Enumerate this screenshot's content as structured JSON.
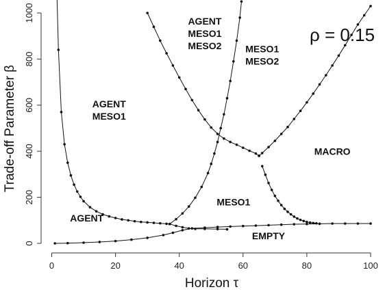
{
  "chart_data": {
    "type": "line",
    "title": "",
    "annotation": "ρ = 0.15",
    "xlabel": "Horizon  τ",
    "ylabel": "Trade-off Parameter  β",
    "xlim": [
      0,
      100
    ],
    "ylim": [
      0,
      1000
    ],
    "xticks": [
      0,
      20,
      40,
      60,
      80,
      100
    ],
    "yticks": [
      0,
      200,
      400,
      600,
      800,
      1000
    ],
    "region_labels": [
      {
        "lines": [
          "AGENT",
          "MESO1",
          "MESO2"
        ],
        "x": 48,
        "y": 950
      },
      {
        "lines": [
          "MESO1",
          "MESO2"
        ],
        "x": 66,
        "y": 830
      },
      {
        "lines": [
          "AGENT",
          "MESO1"
        ],
        "x": 18,
        "y": 590
      },
      {
        "lines": [
          "MACRO"
        ],
        "x": 88,
        "y": 385
      },
      {
        "lines": [
          "MESO1"
        ],
        "x": 57,
        "y": 165
      },
      {
        "lines": [
          "AGENT"
        ],
        "x": 11,
        "y": 95
      },
      {
        "lines": [
          "EMPTY"
        ],
        "x": 68,
        "y": 18
      }
    ],
    "series": [
      {
        "points": [
          [
            1.6,
            1100
          ],
          [
            2.1,
            840
          ],
          [
            3,
            570
          ],
          [
            4,
            430
          ],
          [
            5,
            350
          ],
          [
            6,
            295
          ],
          [
            7,
            255
          ],
          [
            8,
            225
          ],
          [
            9,
            202
          ],
          [
            10,
            183
          ],
          [
            12,
            157
          ],
          [
            14,
            139
          ],
          [
            16,
            126
          ],
          [
            18,
            117
          ],
          [
            20,
            110
          ],
          [
            22,
            104
          ],
          [
            24,
            100
          ],
          [
            26,
            96
          ],
          [
            28,
            93
          ],
          [
            30,
            91
          ],
          [
            32,
            89
          ],
          [
            34,
            87
          ],
          [
            36,
            85
          ],
          [
            37,
            84
          ]
        ]
      },
      {
        "points": [
          [
            37,
            84
          ],
          [
            39,
            105
          ],
          [
            41,
            130
          ],
          [
            43,
            160
          ],
          [
            45,
            198
          ],
          [
            47,
            245
          ],
          [
            49,
            305
          ],
          [
            50,
            345
          ],
          [
            51,
            390
          ],
          [
            52,
            440
          ],
          [
            53,
            500
          ],
          [
            54,
            560
          ],
          [
            55,
            630
          ],
          [
            56,
            705
          ],
          [
            57,
            790
          ],
          [
            58,
            880
          ],
          [
            59,
            980
          ],
          [
            59.5,
            1050
          ]
        ]
      },
      {
        "points": [
          [
            30,
            1000
          ],
          [
            32,
            940
          ],
          [
            34,
            880
          ],
          [
            36,
            825
          ],
          [
            38,
            772
          ],
          [
            40,
            720
          ],
          [
            42,
            670
          ],
          [
            44,
            622
          ],
          [
            46,
            578
          ],
          [
            48,
            538
          ],
          [
            50,
            503
          ],
          [
            52,
            475
          ],
          [
            54,
            455
          ],
          [
            56,
            440
          ],
          [
            58,
            428
          ],
          [
            60,
            415
          ],
          [
            62,
            402
          ],
          [
            64,
            390
          ],
          [
            65,
            380
          ]
        ]
      },
      {
        "points": [
          [
            65,
            380
          ],
          [
            66,
            392
          ],
          [
            68,
            418
          ],
          [
            70,
            445
          ],
          [
            72,
            475
          ],
          [
            74,
            505
          ],
          [
            76,
            540
          ],
          [
            78,
            575
          ],
          [
            80,
            612
          ],
          [
            82,
            650
          ],
          [
            84,
            690
          ],
          [
            86,
            730
          ],
          [
            88,
            772
          ],
          [
            90,
            815
          ],
          [
            92,
            860
          ],
          [
            94,
            905
          ],
          [
            96,
            950
          ],
          [
            98,
            990
          ],
          [
            100,
            1030
          ]
        ]
      },
      {
        "points": [
          [
            66,
            335
          ],
          [
            67,
            298
          ],
          [
            68,
            262
          ],
          [
            69,
            232
          ],
          [
            70,
            206
          ],
          [
            71,
            185
          ],
          [
            72,
            166
          ],
          [
            73,
            150
          ],
          [
            74,
            137
          ],
          [
            75,
            126
          ],
          [
            76,
            116
          ],
          [
            77,
            108
          ],
          [
            78,
            102
          ],
          [
            79,
            97
          ],
          [
            80,
            93
          ],
          [
            81,
            90
          ],
          [
            82,
            88
          ],
          [
            83,
            87
          ]
        ]
      },
      {
        "points": [
          [
            37,
            84
          ],
          [
            39,
            76
          ],
          [
            41,
            70
          ],
          [
            43,
            65
          ],
          [
            45,
            63
          ],
          [
            48,
            63
          ],
          [
            52,
            62
          ],
          [
            55,
            61
          ]
        ]
      },
      {
        "points": [
          [
            1,
            0
          ],
          [
            5,
            1
          ],
          [
            10,
            3
          ],
          [
            15,
            6
          ],
          [
            20,
            10
          ],
          [
            25,
            16
          ],
          [
            30,
            24
          ],
          [
            35,
            36
          ],
          [
            38,
            46
          ],
          [
            41,
            57
          ],
          [
            44,
            65
          ],
          [
            48,
            68
          ],
          [
            52,
            71
          ],
          [
            56,
            73
          ],
          [
            60,
            75
          ],
          [
            64,
            77
          ],
          [
            68,
            79
          ],
          [
            72,
            81
          ],
          [
            76,
            83
          ],
          [
            80,
            84
          ],
          [
            84,
            85
          ],
          [
            88,
            86
          ],
          [
            92,
            86
          ],
          [
            96,
            86
          ],
          [
            100,
            86
          ]
        ]
      }
    ]
  }
}
